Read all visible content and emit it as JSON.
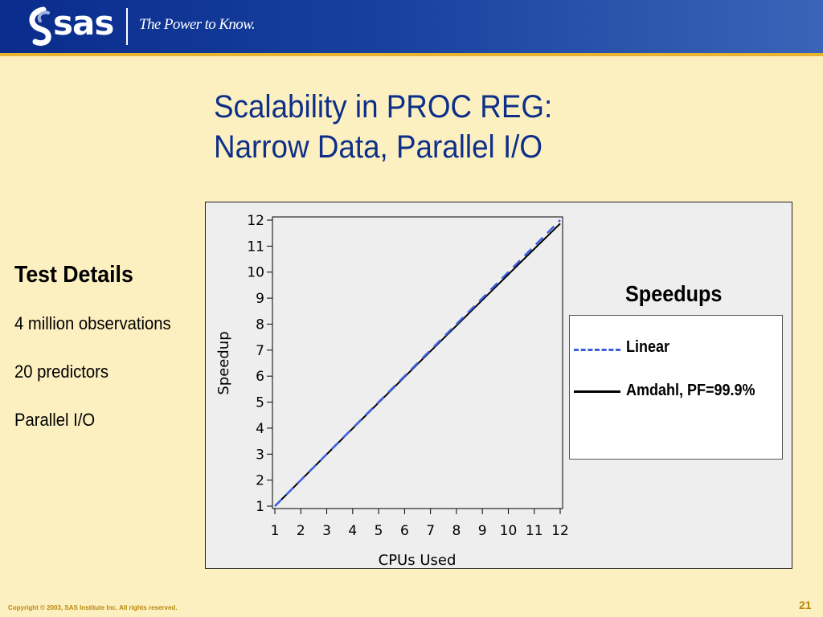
{
  "header": {
    "logo_text": "sas",
    "tagline": "The Power to Know."
  },
  "title": {
    "line1": "Scalability in PROC REG:",
    "line2": "Narrow Data, Parallel I/O"
  },
  "details": {
    "heading": "Test Details",
    "items": [
      "4 million observations",
      "20 predictors",
      "Parallel I/O"
    ]
  },
  "colors": {
    "header_blue": "#17409e",
    "title_blue": "#0d2f8a",
    "background": "#fdf0c0",
    "linear_series": "#3a5fe0",
    "amdahl_series": "#000000",
    "footer_gold": "#b8860b"
  },
  "chart_data": {
    "type": "line",
    "title": "",
    "xlabel": "CPUs Used",
    "ylabel": "Speedup",
    "xlim": [
      1,
      12
    ],
    "ylim": [
      1,
      12
    ],
    "x_ticks": [
      1,
      2,
      3,
      4,
      5,
      6,
      7,
      8,
      9,
      10,
      11,
      12
    ],
    "y_ticks": [
      1,
      2,
      3,
      4,
      5,
      6,
      7,
      8,
      9,
      10,
      11,
      12
    ],
    "grid": false,
    "legend": {
      "title": "Speedups",
      "placement": "right"
    },
    "x": [
      1,
      2,
      3,
      4,
      5,
      6,
      7,
      8,
      9,
      10,
      11,
      12
    ],
    "series": [
      {
        "name": "Linear",
        "style": "dashed",
        "color": "#3a5fe0",
        "values": [
          1,
          2,
          3,
          4,
          5,
          6,
          7,
          8,
          9,
          10,
          11,
          12
        ]
      },
      {
        "name": "Amdahl, PF=99.9%",
        "style": "solid",
        "color": "#000000",
        "values": [
          1,
          1.998,
          2.994,
          3.988,
          4.98,
          5.97,
          6.958,
          7.944,
          8.928,
          9.91,
          10.89,
          11.868
        ]
      }
    ]
  },
  "footer": {
    "copyright": "Copyright © 2003, SAS Institute Inc. All rights reserved.",
    "page_number": "21"
  }
}
